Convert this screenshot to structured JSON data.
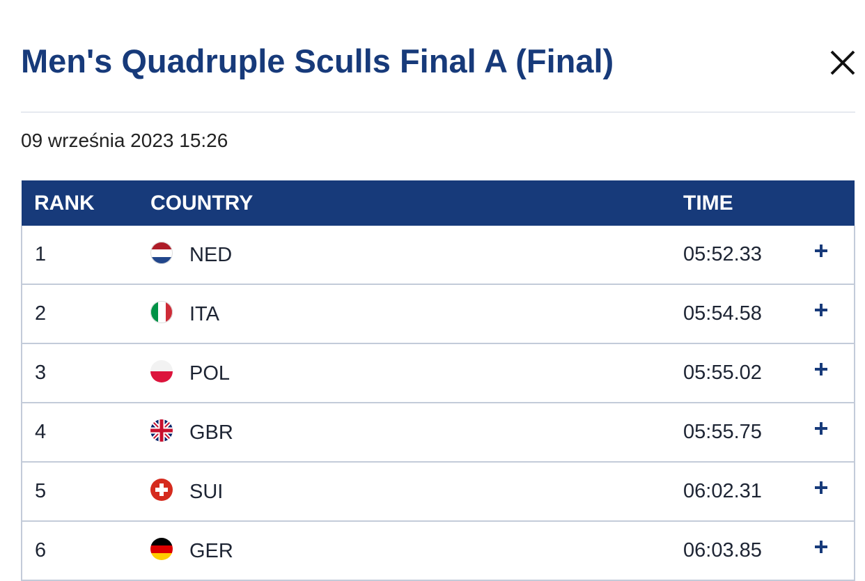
{
  "header": {
    "title": "Men's Quadruple Sculls Final A (Final)",
    "date": "09 września 2023 15:26"
  },
  "table": {
    "columns": [
      "RANK",
      "COUNTRY",
      "TIME"
    ],
    "rows": [
      [
        1,
        "NED",
        "05:52.33"
      ],
      [
        2,
        "ITA",
        "05:54.58"
      ],
      [
        3,
        "POL",
        "05:55.02"
      ],
      [
        4,
        "GBR",
        "05:55.75"
      ],
      [
        5,
        "SUI",
        "06:02.31"
      ],
      [
        6,
        "GER",
        "06:03.85"
      ]
    ]
  }
}
